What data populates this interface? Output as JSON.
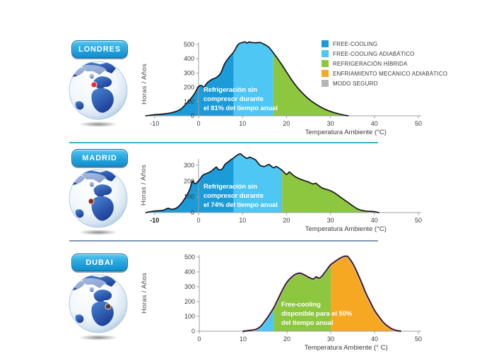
{
  "colors": {
    "free_cooling": "#1B9CD8",
    "free_cooling_adiabatico": "#4EC7F4",
    "refrigeracion_hibrida": "#8DC63F",
    "enfriamiento_mecanico_adiabatico": "#F7A823",
    "modo_seguro": "#B5B5B5",
    "curve_stroke": "#15151F",
    "divider_top": "#2FB3C4",
    "divider_bottom": "#8096B4",
    "badge_blue": "#1C9CD8"
  },
  "legend": {
    "items": [
      {
        "label": "FREE-COOLING",
        "color": "#1B9CD8"
      },
      {
        "label": "FREE-COOLING ADIABÁTICO",
        "color": "#4EC7F4"
      },
      {
        "label": "REFRIGERACIÓN HÍBRIDA",
        "color": "#8DC63F"
      },
      {
        "label": "ENFRIAMIENTO MECÁNICO ADIABÁTICO",
        "color": "#F7A823"
      },
      {
        "label": "MODO SEGURO",
        "color": "#B5B5B5"
      }
    ]
  },
  "sections": [
    {
      "city": "LONDRES",
      "ylabel": "Horas / Años",
      "xlabel": "Temperatura Ambiente (°C)",
      "annotation": "Refrigeración sin\ncompresor durante\nel 81% del tiempo anual",
      "marker_color": "#E62E3B"
    },
    {
      "city": "MADRID",
      "ylabel": "Horas / Años",
      "xlabel": "Temperatura Ambiente (°C)",
      "annotation": "Refrigeración sin\ncompresor durante\nel 74% del tiempo anual",
      "marker_color": "#8A2F1F"
    },
    {
      "city": "DUBAI",
      "ylabel": "Horas / Años",
      "xlabel": "Temperatura Ambiente (° C)",
      "annotation": "Free-cooling\ndisponible para el 50%\ndel tiempo anual",
      "marker_color": "#5A3A24"
    }
  ],
  "chart_data": [
    {
      "type": "area",
      "title": "LONDRES",
      "xlabel": "Temperatura Ambiente (°C)",
      "ylabel": "Horas / Años",
      "annotation": "Refrigeración sin compresor durante el 81% del tiempo anual",
      "xlim": [
        -12,
        50
      ],
      "ylim": [
        0,
        515
      ],
      "x_ticks": [
        -10,
        0,
        10,
        20,
        30,
        40,
        50
      ],
      "y_ticks": [
        0,
        100,
        200,
        300,
        400,
        500
      ],
      "bold_x_ticks": [],
      "zones": [
        {
          "from": -12,
          "to": 8,
          "mode": "FREE-COOLING",
          "color": "#1B9CD8"
        },
        {
          "from": 8,
          "to": 17,
          "mode": "FREE-COOLING ADIABÁTICO",
          "color": "#4EC7F4"
        },
        {
          "from": 17,
          "to": 34,
          "mode": "REFRIGERACIÓN HÍBRIDA",
          "color": "#8DC63F"
        }
      ],
      "points": [
        [
          -12,
          0
        ],
        [
          -11,
          4
        ],
        [
          -10,
          8
        ],
        [
          -9,
          10
        ],
        [
          -8,
          13
        ],
        [
          -7,
          17
        ],
        [
          -6,
          23
        ],
        [
          -5,
          32
        ],
        [
          -4,
          48
        ],
        [
          -3,
          78
        ],
        [
          -2,
          112
        ],
        [
          -1,
          152
        ],
        [
          0,
          205
        ],
        [
          0.7,
          212
        ],
        [
          1.2,
          202
        ],
        [
          2,
          232
        ],
        [
          3,
          255
        ],
        [
          4,
          268
        ],
        [
          5,
          298
        ],
        [
          6,
          368
        ],
        [
          7,
          412
        ],
        [
          8,
          448
        ],
        [
          9,
          500
        ],
        [
          10,
          514
        ],
        [
          10.6,
          519
        ],
        [
          11,
          510
        ],
        [
          11.5,
          518
        ],
        [
          12,
          514
        ],
        [
          13,
          512
        ],
        [
          14,
          514
        ],
        [
          15,
          500
        ],
        [
          16,
          480
        ],
        [
          17,
          442
        ],
        [
          18,
          400
        ],
        [
          19,
          356
        ],
        [
          20,
          308
        ],
        [
          21,
          260
        ],
        [
          22,
          218
        ],
        [
          23,
          180
        ],
        [
          24,
          148
        ],
        [
          25,
          120
        ],
        [
          26,
          96
        ],
        [
          27,
          76
        ],
        [
          28,
          58
        ],
        [
          29,
          43
        ],
        [
          30,
          31
        ],
        [
          31,
          21
        ],
        [
          32,
          13
        ],
        [
          33,
          6
        ],
        [
          34,
          0
        ]
      ]
    },
    {
      "type": "area",
      "title": "MADRID",
      "xlabel": "Temperatura Ambiente (°C)",
      "ylabel": "Horas / Años",
      "annotation": "Refrigeración sin compresor durante el 74% del tiempo anual",
      "xlim": [
        -12,
        50
      ],
      "ylim": [
        0,
        340
      ],
      "x_ticks": [
        -10,
        0,
        10,
        20,
        30,
        40,
        50
      ],
      "y_ticks": [
        0,
        100,
        200,
        300
      ],
      "bold_x_ticks": [
        -10
      ],
      "zones": [
        {
          "from": -12,
          "to": 8,
          "mode": "FREE-COOLING",
          "color": "#1B9CD8"
        },
        {
          "from": 8,
          "to": 19,
          "mode": "FREE-COOLING ADIABÁTICO",
          "color": "#4EC7F4"
        },
        {
          "from": 19,
          "to": 41,
          "mode": "REFRIGERACIÓN HÍBRIDA",
          "color": "#8DC63F"
        }
      ],
      "points": [
        [
          -12,
          0
        ],
        [
          -11,
          6
        ],
        [
          -10,
          10
        ],
        [
          -9,
          12
        ],
        [
          -8,
          15
        ],
        [
          -7,
          27
        ],
        [
          -6,
          21
        ],
        [
          -5,
          29
        ],
        [
          -4,
          55
        ],
        [
          -3,
          95
        ],
        [
          -2,
          148
        ],
        [
          -1.4,
          200
        ],
        [
          -0.8,
          183
        ],
        [
          0,
          200
        ],
        [
          1,
          238
        ],
        [
          2,
          250
        ],
        [
          3,
          265
        ],
        [
          4,
          288
        ],
        [
          4.6,
          272
        ],
        [
          5.4,
          278
        ],
        [
          6,
          305
        ],
        [
          7,
          328
        ],
        [
          8,
          348
        ],
        [
          9,
          368
        ],
        [
          9.6,
          372
        ],
        [
          10,
          362
        ],
        [
          11,
          345
        ],
        [
          11.6,
          352
        ],
        [
          12,
          348
        ],
        [
          13,
          333
        ],
        [
          14,
          300
        ],
        [
          15,
          293
        ],
        [
          16,
          305
        ],
        [
          17,
          285
        ],
        [
          17.6,
          292
        ],
        [
          18,
          288
        ],
        [
          19,
          268
        ],
        [
          20,
          243
        ],
        [
          20.6,
          258
        ],
        [
          21,
          250
        ],
        [
          22,
          228
        ],
        [
          23,
          214
        ],
        [
          24,
          204
        ],
        [
          25,
          194
        ],
        [
          26,
          182
        ],
        [
          26.6,
          186
        ],
        [
          27,
          180
        ],
        [
          28,
          158
        ],
        [
          29,
          148
        ],
        [
          30,
          139
        ],
        [
          31,
          124
        ],
        [
          32,
          104
        ],
        [
          33,
          84
        ],
        [
          34,
          64
        ],
        [
          35,
          44
        ],
        [
          36,
          26
        ],
        [
          37,
          15
        ],
        [
          38,
          10
        ],
        [
          39,
          8
        ],
        [
          40,
          6
        ],
        [
          41,
          0
        ]
      ]
    },
    {
      "type": "area",
      "title": "DUBAI",
      "xlabel": "Temperatura Ambiente (° C)",
      "ylabel": "Horas / Años",
      "annotation": "Free-cooling disponible para el 50% del tiempo anual",
      "xlim": [
        0,
        50
      ],
      "ylim": [
        0,
        515
      ],
      "x_ticks": [
        0,
        10,
        20,
        30,
        40,
        50
      ],
      "y_ticks": [
        0,
        100,
        200,
        300,
        400,
        500
      ],
      "bold_x_ticks": [],
      "glow": "#F2B8CF",
      "zones": [
        {
          "from": 13,
          "to": 17,
          "mode": "FREE-COOLING ADIABÁTICO",
          "color": "#4EC7F4"
        },
        {
          "from": 17,
          "to": 30,
          "mode": "REFRIGERACIÓN HÍBRIDA",
          "color": "#8DC63F"
        },
        {
          "from": 30,
          "to": 46,
          "mode": "ENFRIAMIENTO MECÁNICO ADIABÁTICO",
          "color": "#F7A823"
        }
      ],
      "points": [
        [
          10,
          0
        ],
        [
          11,
          3
        ],
        [
          12,
          7
        ],
        [
          13,
          13
        ],
        [
          14,
          32
        ],
        [
          15,
          68
        ],
        [
          16,
          110
        ],
        [
          17,
          158
        ],
        [
          18,
          218
        ],
        [
          19,
          278
        ],
        [
          20,
          330
        ],
        [
          21,
          362
        ],
        [
          22,
          384
        ],
        [
          23,
          391
        ],
        [
          24,
          379
        ],
        [
          25,
          363
        ],
        [
          26,
          352
        ],
        [
          26.7,
          366
        ],
        [
          27.3,
          357
        ],
        [
          28,
          371
        ],
        [
          29,
          410
        ],
        [
          30,
          448
        ],
        [
          31,
          470
        ],
        [
          32,
          490
        ],
        [
          33,
          504
        ],
        [
          33.6,
          506
        ],
        [
          34,
          500
        ],
        [
          35,
          458
        ],
        [
          36,
          398
        ],
        [
          37,
          330
        ],
        [
          38,
          258
        ],
        [
          39,
          198
        ],
        [
          40,
          140
        ],
        [
          41,
          98
        ],
        [
          42,
          60
        ],
        [
          43,
          34
        ],
        [
          44,
          15
        ],
        [
          45,
          5
        ],
        [
          46,
          0
        ]
      ]
    }
  ]
}
